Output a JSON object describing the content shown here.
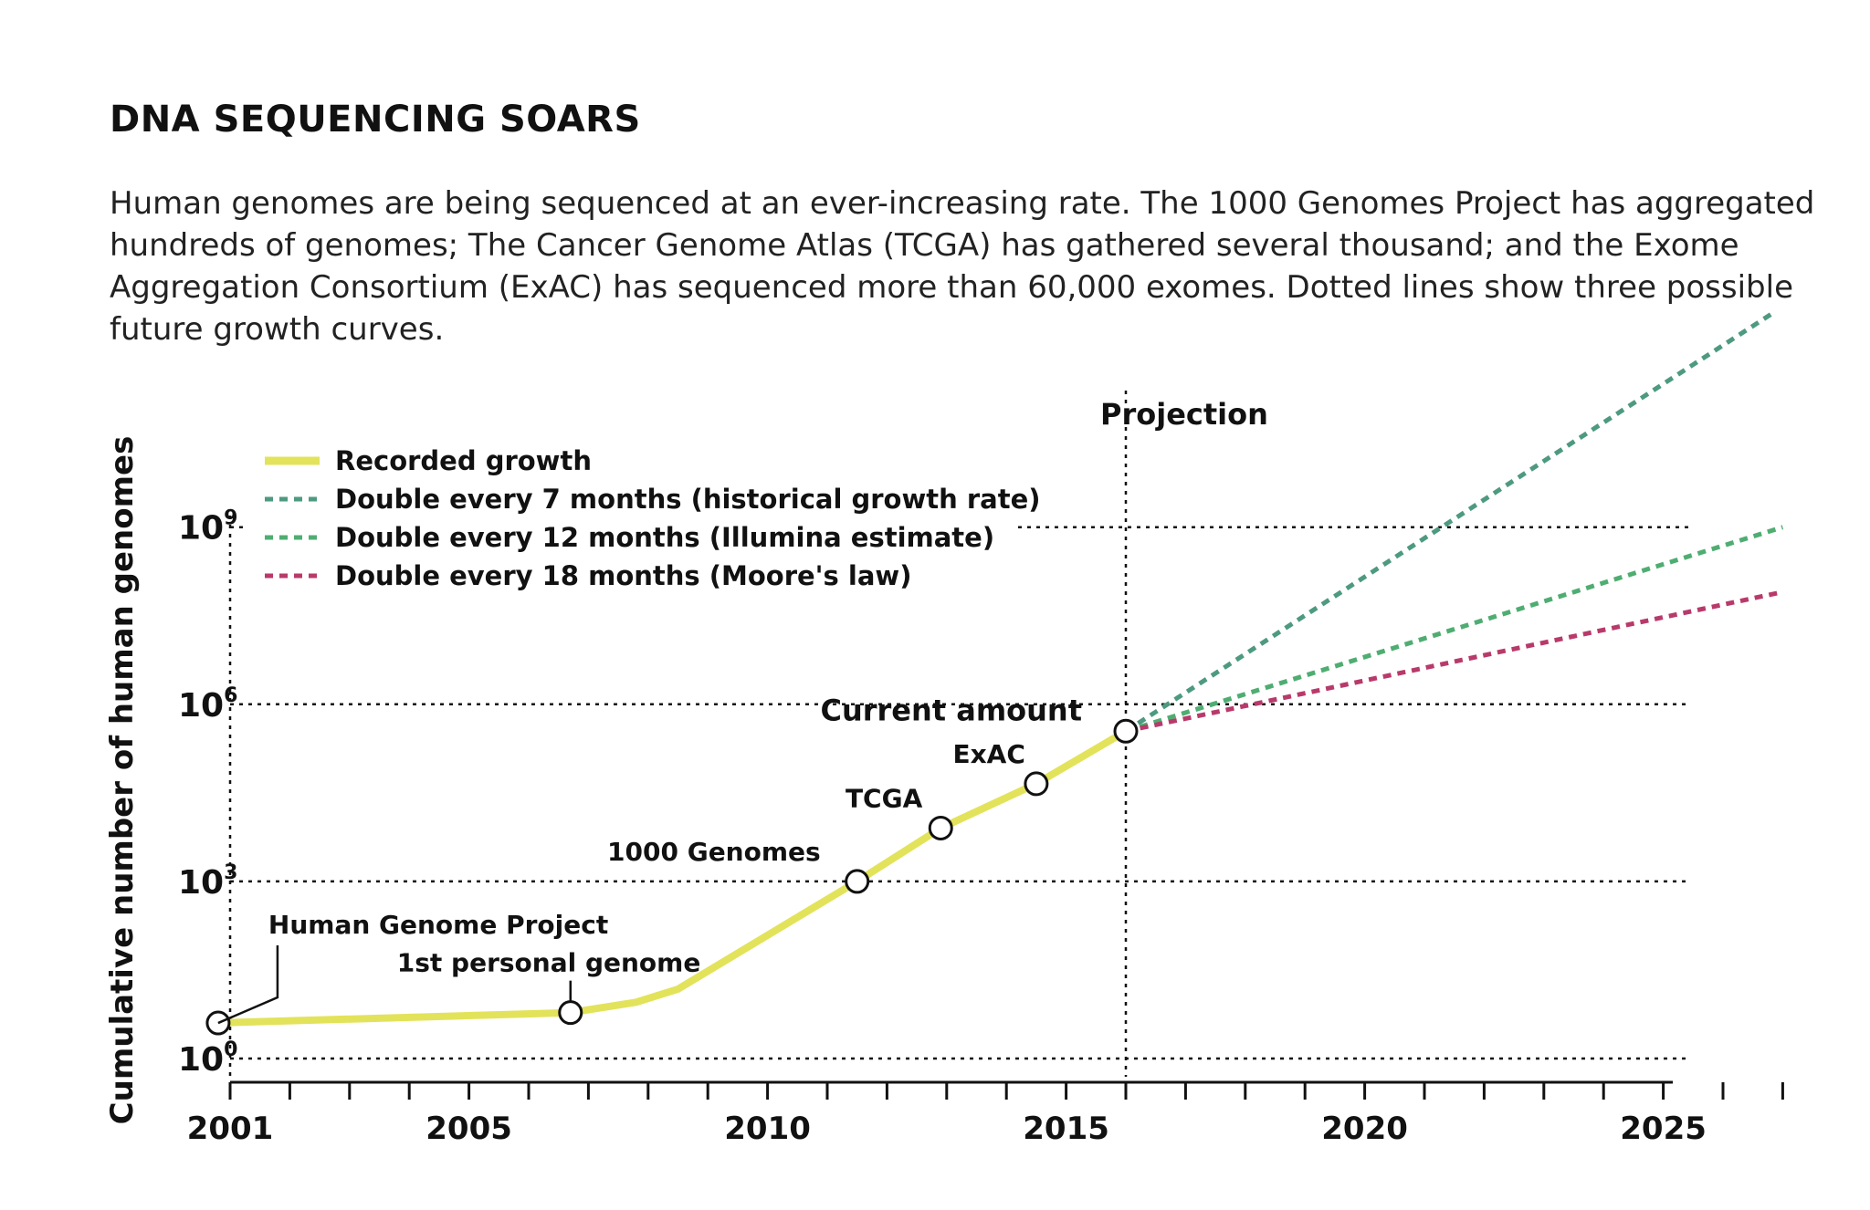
{
  "title": "DNA SEQUENCING SOARS",
  "subtitle": "Human genomes are being sequenced at an ever-increasing rate. The 1000 Genomes Project has aggregated hundreds of genomes; The Cancer Genome Atlas (TCGA) has gathered several thousand; and the Exome Aggregation Consortium (ExAC) has sequenced more than 60,000 exomes. Dotted lines show three possible future growth curves.",
  "chart_data": {
    "type": "line",
    "ylabel": "Cumulative number of human genomes",
    "yscale": "log10",
    "x_ticks": [
      "2001",
      "2005",
      "2010",
      "2015",
      "2020",
      "2025"
    ],
    "y_ticks": [
      {
        "base": "10",
        "exp": "0",
        "value": 1
      },
      {
        "base": "10",
        "exp": "3",
        "value": 1000
      },
      {
        "base": "10",
        "exp": "6",
        "value": 1000000
      },
      {
        "base": "10",
        "exp": "9",
        "value": 1000000000
      }
    ],
    "projection_label": "Projection",
    "current_amount_label": "Current amount",
    "series": [
      {
        "name": "Recorded growth",
        "color": "#e2e35a",
        "style": "solid",
        "x": [
          2000.8,
          2006.7,
          2007.8,
          2008.5,
          2011.5,
          2012.9,
          2014.5,
          2016.0
        ],
        "y": [
          4,
          6,
          9,
          15,
          1000,
          8000,
          45000,
          350000
        ]
      },
      {
        "name": "Double every 7 months (historical growth rate)",
        "color": "#4d9a80",
        "style": "dotted",
        "x": [
          2016.0,
          2026.8
        ],
        "y": [
          350000,
          4000000000000
        ]
      },
      {
        "name": "Double every 12 months (Illumina estimate)",
        "color": "#4fad72",
        "style": "dotted",
        "x": [
          2016.0,
          2027.0
        ],
        "y": [
          350000,
          1000000000
        ]
      },
      {
        "name": "Double every 18 months (Moore's law)",
        "color": "#b83a6b",
        "style": "dotted",
        "x": [
          2016.0,
          2027.0
        ],
        "y": [
          350000,
          80000000
        ]
      }
    ],
    "annotations": [
      {
        "label": "Human Genome Project",
        "x": 2000.8,
        "y": 4
      },
      {
        "label": "1st personal genome",
        "x": 2006.7,
        "y": 6
      },
      {
        "label": "1000 Genomes",
        "x": 2011.5,
        "y": 1000
      },
      {
        "label": "TCGA",
        "x": 2012.9,
        "y": 8000
      },
      {
        "label": "ExAC",
        "x": 2014.5,
        "y": 45000
      },
      {
        "label": "Current amount",
        "x": 2016.0,
        "y": 350000
      }
    ]
  }
}
